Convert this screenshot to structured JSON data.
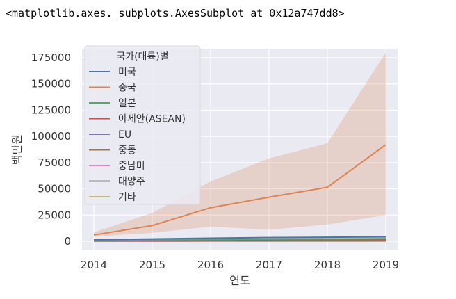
{
  "output_repr": "<matplotlib.axes._subplots.AxesSubplot at 0x12a747dd8>",
  "chart_data": {
    "type": "line",
    "title": "",
    "xlabel": "연도",
    "ylabel": "백만원",
    "x": [
      2014,
      2015,
      2016,
      2017,
      2018,
      2019
    ],
    "xlim": [
      2014,
      2019
    ],
    "ylim": [
      0,
      175000
    ],
    "yticks": [
      0,
      25000,
      50000,
      75000,
      100000,
      125000,
      150000,
      175000
    ],
    "ytick_labels": [
      "0",
      "25000",
      "50000",
      "75000",
      "100000",
      "125000",
      "150000",
      "175000"
    ],
    "grid": true,
    "style": "seaborn darkgrid",
    "legend": {
      "title": "국가(대륙)별",
      "placement": "upper-left"
    },
    "series": [
      {
        "name": "미국",
        "color": "#4c72b0",
        "values": [
          1500,
          2200,
          3000,
          3600,
          3900,
          4200
        ]
      },
      {
        "name": "중국",
        "color": "#dd8452",
        "values": [
          6000,
          15000,
          32000,
          42000,
          51500,
          92000
        ],
        "ci_lower": [
          4500,
          8000,
          14000,
          11000,
          16000,
          25000
        ],
        "ci_upper": [
          8500,
          27000,
          57000,
          79000,
          93500,
          180000
        ]
      },
      {
        "name": "일본",
        "color": "#55a868",
        "values": [
          900,
          1300,
          1700,
          2100,
          2300,
          2600
        ]
      },
      {
        "name": "아세안(ASEAN)",
        "color": "#c44e52",
        "values": [
          700,
          900,
          1100,
          1400,
          1600,
          1900
        ]
      },
      {
        "name": "EU",
        "color": "#8172b3",
        "values": [
          600,
          800,
          1000,
          1200,
          1300,
          1500
        ]
      },
      {
        "name": "중동",
        "color": "#937860",
        "values": [
          300,
          350,
          400,
          450,
          500,
          550
        ]
      },
      {
        "name": "중남미",
        "color": "#da8bc3",
        "values": [
          200,
          250,
          300,
          350,
          380,
          420
        ]
      },
      {
        "name": "대양주",
        "color": "#8c8c8c",
        "values": [
          150,
          180,
          210,
          240,
          260,
          290
        ]
      },
      {
        "name": "기타",
        "color": "#ccb974",
        "values": [
          100,
          120,
          140,
          160,
          180,
          200
        ]
      }
    ]
  }
}
